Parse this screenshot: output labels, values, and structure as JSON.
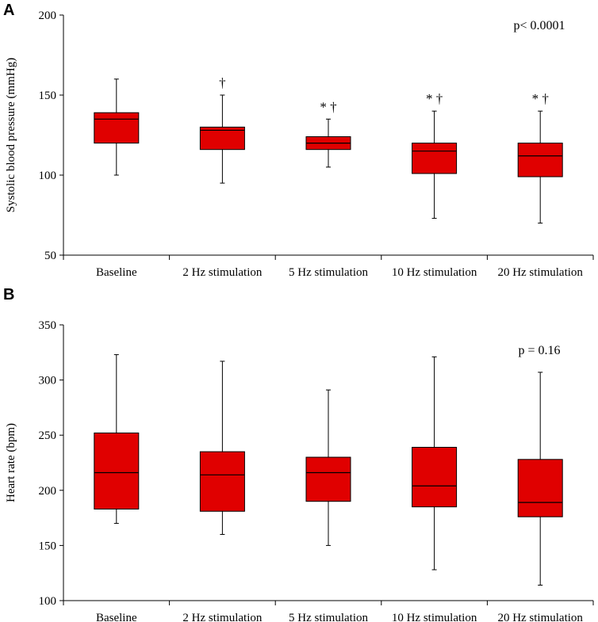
{
  "chart_data": [
    {
      "type": "boxplot",
      "panel": "A",
      "ylabel": "Systolic blood pressure (mmHg)",
      "ylim": [
        50,
        200
      ],
      "yticks": [
        50,
        100,
        150,
        200
      ],
      "categories": [
        "Baseline",
        "2 Hz stimulation",
        "5 Hz stimulation",
        "10 Hz stimulation",
        "20 Hz stimulation"
      ],
      "p_value_text": "p< 0.0001",
      "color": "#e00000",
      "boxes": [
        {
          "min": 100,
          "q1": 120,
          "median": 135,
          "q3": 139,
          "max": 160,
          "annotation": ""
        },
        {
          "min": 95,
          "q1": 116,
          "median": 128,
          "q3": 130,
          "max": 150,
          "annotation": "†"
        },
        {
          "min": 105,
          "q1": 116,
          "median": 120,
          "q3": 124,
          "max": 135,
          "annotation": "* †"
        },
        {
          "min": 73,
          "q1": 101,
          "median": 115,
          "q3": 120,
          "max": 140,
          "annotation": "* †"
        },
        {
          "min": 70,
          "q1": 99,
          "median": 112,
          "q3": 120,
          "max": 140,
          "annotation": "* †"
        }
      ]
    },
    {
      "type": "boxplot",
      "panel": "B",
      "ylabel": "Heart rate (bpm)",
      "ylim": [
        100,
        350
      ],
      "yticks": [
        100,
        150,
        200,
        250,
        300,
        350
      ],
      "categories": [
        "Baseline",
        "2 Hz stimulation",
        "5 Hz stimulation",
        "10 Hz stimulation",
        "20 Hz stimulation"
      ],
      "p_value_text": "p = 0.16",
      "color": "#e00000",
      "boxes": [
        {
          "min": 170,
          "q1": 183,
          "median": 216,
          "q3": 252,
          "max": 323,
          "annotation": ""
        },
        {
          "min": 160,
          "q1": 181,
          "median": 214,
          "q3": 235,
          "max": 317,
          "annotation": ""
        },
        {
          "min": 150,
          "q1": 190,
          "median": 216,
          "q3": 230,
          "max": 291,
          "annotation": ""
        },
        {
          "min": 128,
          "q1": 185,
          "median": 204,
          "q3": 239,
          "max": 321,
          "annotation": ""
        },
        {
          "min": 114,
          "q1": 176,
          "median": 189,
          "q3": 228,
          "max": 307,
          "annotation": ""
        }
      ]
    }
  ]
}
